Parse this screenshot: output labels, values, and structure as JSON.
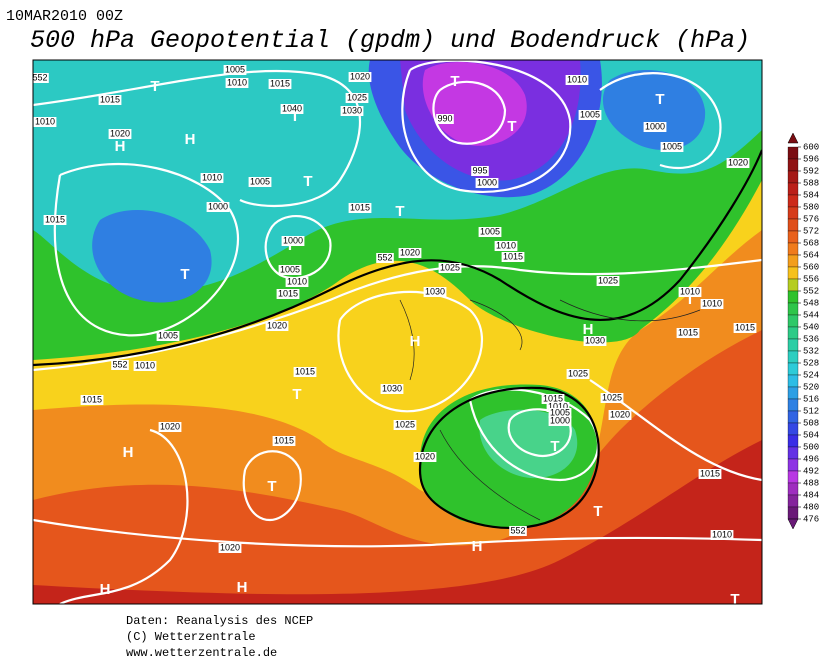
{
  "header": {
    "date": "10MAR2010 00Z",
    "title": "500 hPa Geopotential (gpdm) und Bodendruck (hPa)"
  },
  "colorbar": {
    "ticks": [
      600,
      596,
      592,
      588,
      584,
      580,
      576,
      572,
      568,
      564,
      560,
      556,
      552,
      548,
      544,
      540,
      536,
      532,
      528,
      524,
      520,
      516,
      512,
      508,
      504,
      500,
      496,
      492,
      488,
      484,
      480,
      476
    ]
  },
  "map": {
    "centers": [
      "T",
      "T",
      "T",
      "T",
      "T",
      "H",
      "H",
      "T",
      "T",
      "T",
      "T",
      "H",
      "H",
      "T",
      "T",
      "H",
      "T",
      "T",
      "T",
      "H",
      "H",
      "H",
      "T"
    ],
    "labels": [
      "1005",
      "1010",
      "1015",
      "1020",
      "1025",
      "1030",
      "1040",
      "1015",
      "1010",
      "1020",
      "990",
      "995",
      "1000",
      "1010",
      "1005",
      "1000",
      "1005",
      "1020",
      "1010",
      "1005",
      "1000",
      "1015",
      "1015",
      "1000",
      "1005",
      "1010",
      "1015",
      "1020",
      "1025",
      "1005",
      "1010",
      "1015",
      "1025",
      "1010",
      "1010",
      "1015",
      "1015",
      "1030",
      "1020",
      "1005",
      "1010",
      "1030",
      "1015",
      "1015",
      "1030",
      "1025",
      "1025",
      "1015",
      "1010",
      "1005",
      "1000",
      "1020",
      "1025",
      "1020",
      "1015",
      "1020",
      "1015",
      "1010",
      "1020",
      "552",
      "552",
      "552",
      "552"
    ]
  },
  "footer": {
    "lines": [
      "Daten: Reanalysis des NCEP",
      "(C) Wetterzentrale",
      "www.wetterzentrale.de"
    ]
  }
}
